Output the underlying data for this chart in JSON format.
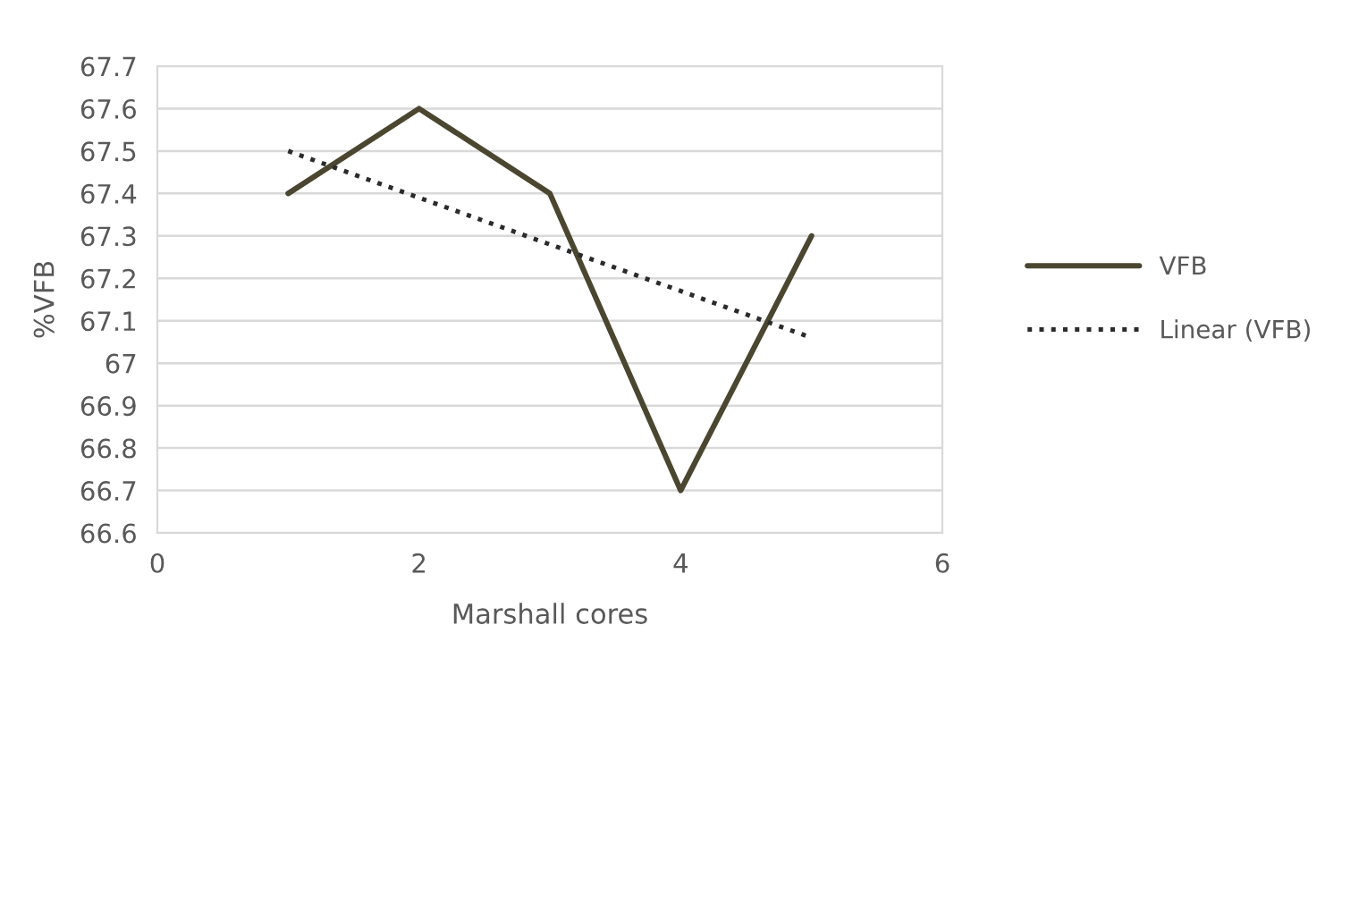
{
  "chart_data": {
    "type": "line",
    "xlabel": "Marshall cores",
    "ylabel": "%VFB",
    "x": [
      1,
      2,
      3,
      4,
      5
    ],
    "series": [
      {
        "name": "VFB",
        "color": "#4b4630",
        "values": [
          67.4,
          67.6,
          67.4,
          66.7,
          67.3
        ],
        "line_style": "solid"
      },
      {
        "name": "Linear (VFB)",
        "color": "#2b2b2b",
        "x": [
          1,
          5
        ],
        "values": [
          67.5,
          67.06
        ],
        "line_style": "dotted"
      }
    ],
    "xlim": [
      0,
      6
    ],
    "xticks": [
      0,
      2,
      4,
      6
    ],
    "ylim": [
      66.6,
      67.7
    ],
    "yticks": [
      66.6,
      66.7,
      66.8,
      66.9,
      67,
      67.1,
      67.2,
      67.3,
      67.4,
      67.5,
      67.6,
      67.7
    ],
    "grid": "y",
    "legend": "right",
    "marker": "none"
  }
}
